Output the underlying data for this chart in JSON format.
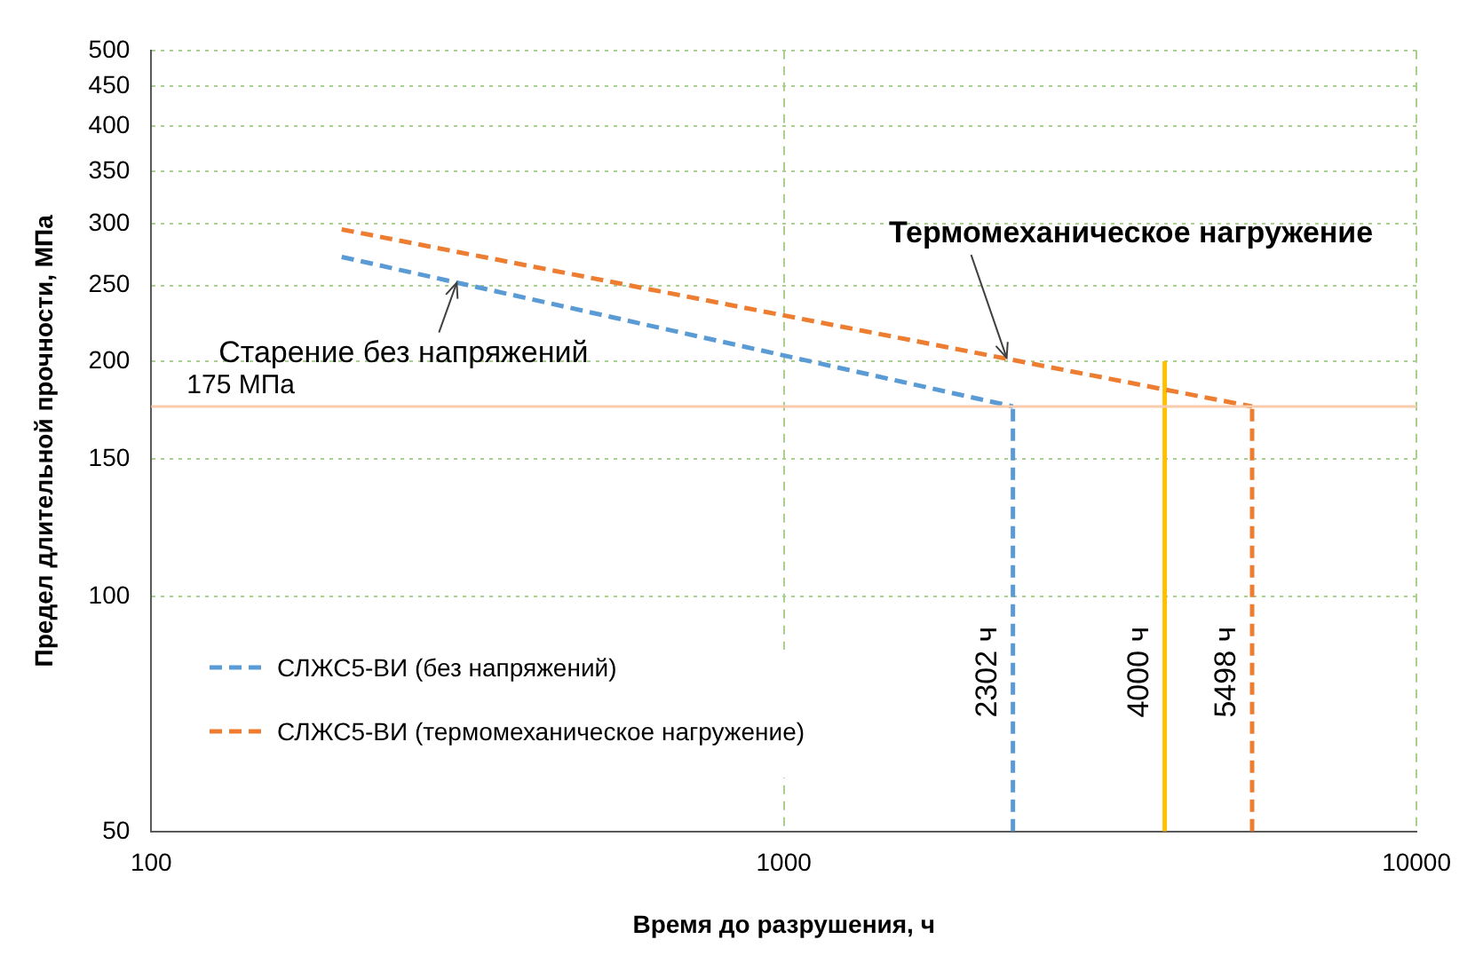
{
  "chart_data": {
    "type": "line",
    "xlabel": "Время до разрушения, ч",
    "ylabel": "Предел длительной прочности, МПа",
    "log": "xy",
    "xlim": [
      100,
      10000
    ],
    "xticks": [
      100,
      1000,
      10000
    ],
    "ylim": [
      50,
      500
    ],
    "yticks": [
      50,
      100,
      150,
      200,
      250,
      300,
      350,
      400,
      450,
      500
    ],
    "grid": true,
    "legend": "left",
    "marker": "none",
    "series": [
      {
        "name": "СЛЖС5-ВИ (без напряжений)",
        "color": "#5b9bd5",
        "line_style": "dashed",
        "x": [
          200,
          2302
        ],
        "values": [
          272,
          175
        ]
      },
      {
        "name": "СЛЖС5-ВИ (термомеханическое нагружение)",
        "color": "#ed7d31",
        "line_style": "dashed",
        "x": [
          200,
          5498
        ],
        "values": [
          295,
          175
        ]
      },
      {
        "color": "#5b9bd5",
        "line_style": "dashed",
        "x": [
          2302,
          2302
        ],
        "values": [
          50,
          175
        ]
      },
      {
        "color": "#ffc000",
        "line_style": "solid",
        "x": [
          4000,
          4000
        ],
        "values": [
          50,
          200
        ]
      },
      {
        "color": "#ed7d31",
        "line_style": "dashed",
        "x": [
          5498,
          5498
        ],
        "values": [
          50,
          175
        ]
      }
    ],
    "ref_lines": [
      {
        "axis": "y",
        "value": 175,
        "label": "175 МПа",
        "color": "#f8cbad"
      }
    ],
    "annotations": [
      {
        "text": "Старение без напряжений",
        "x": 304,
        "y": 252
      },
      {
        "text": "Термомеханическое нагружение",
        "x": 2250,
        "y": 202
      },
      {
        "text": "2302 ч",
        "x": 2302,
        "y": 80
      },
      {
        "text": "4000 ч",
        "x": 4000,
        "y": 80
      },
      {
        "text": "5498 ч",
        "x": 5498,
        "y": 80
      }
    ]
  }
}
